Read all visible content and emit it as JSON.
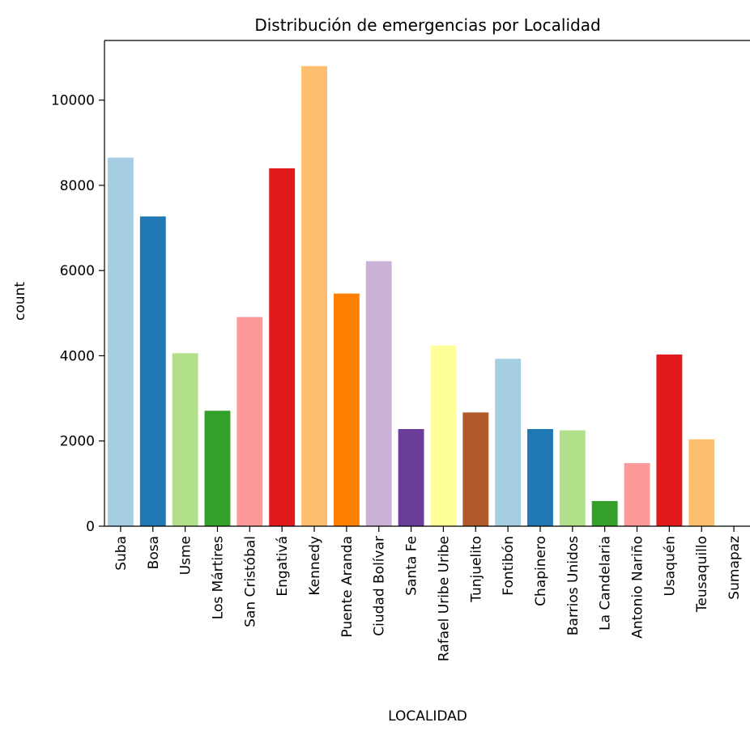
{
  "chart_data": {
    "type": "bar",
    "title": "Distribución de emergencias por Localidad",
    "xlabel": "LOCALIDAD",
    "ylabel": "count",
    "ylim": [
      0,
      11400
    ],
    "yticks": [
      0,
      2000,
      4000,
      6000,
      8000,
      10000
    ],
    "grid": false,
    "categories": [
      "Suba",
      "Bosa",
      "Usme",
      "Los Mártires",
      "San Cristóbal",
      "Engativá",
      "Kennedy",
      "Puente Aranda",
      "Ciudad Bolívar",
      "Santa Fe",
      "Rafael Uribe Uribe",
      "Tunjuelito",
      "Fontibón",
      "Chapinero",
      "Barrios Unidos",
      "La Candelaria",
      "Antonio Nariño",
      "Usaquén",
      "Teusaquillo",
      "Sumapaz"
    ],
    "values": [
      8650,
      7270,
      4060,
      2710,
      4910,
      8400,
      10800,
      5460,
      6220,
      2280,
      4240,
      2670,
      3930,
      2280,
      2250,
      590,
      1480,
      4030,
      2040,
      0
    ],
    "colors": [
      "#a6cee3",
      "#1f78b4",
      "#b2df8a",
      "#33a02c",
      "#fb9a99",
      "#e31a1c",
      "#fdbf6f",
      "#ff7f00",
      "#cab2d6",
      "#6a3d9a",
      "#ffff99",
      "#b15928",
      "#a6cee3",
      "#1f78b4",
      "#b2df8a",
      "#33a02c",
      "#fb9a99",
      "#e31a1c",
      "#fdbf6f",
      "#ff7f00"
    ]
  }
}
